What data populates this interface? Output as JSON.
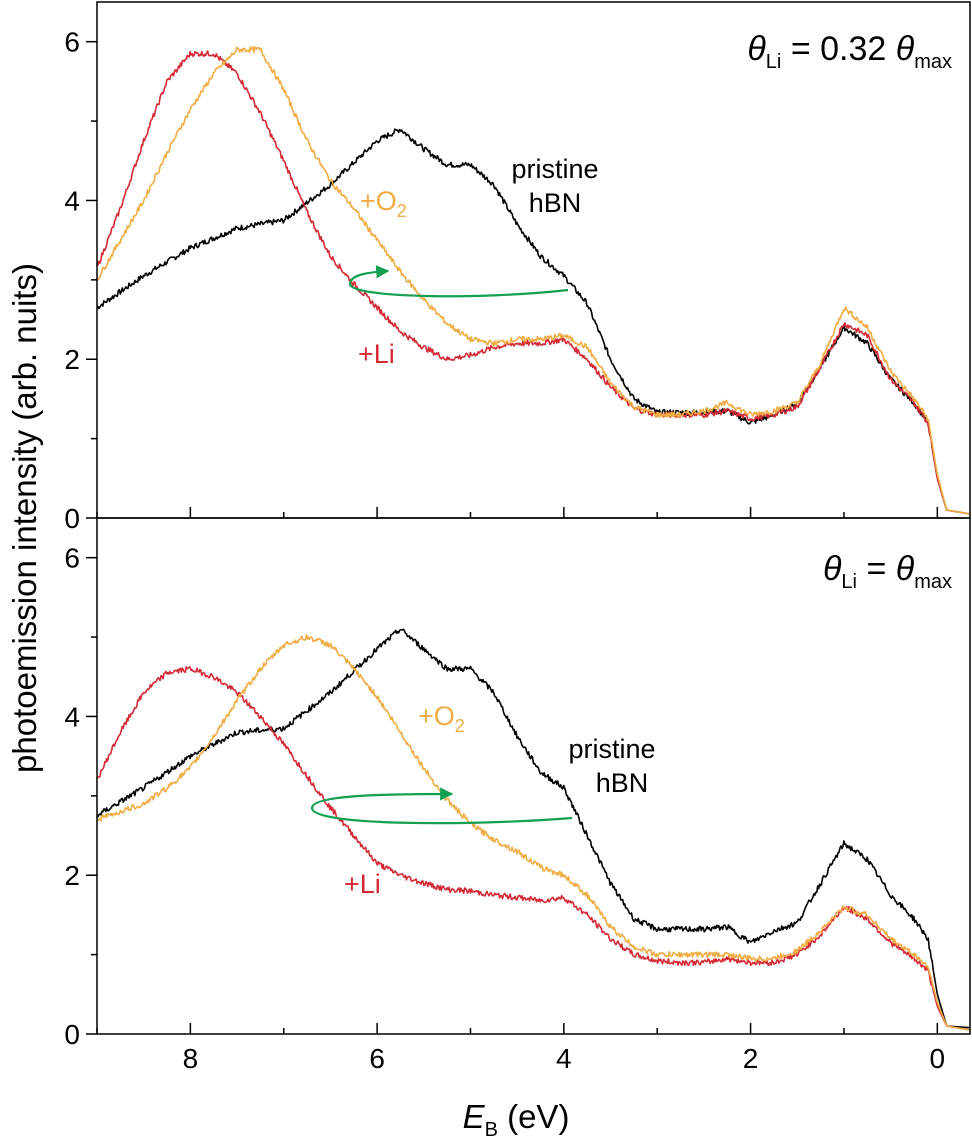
{
  "figure": {
    "ylabel": "photoemission intensity (arb. nuits)",
    "xlabel_main": "E",
    "xlabel_sub": "B",
    "xlabel_unit": " (eV)"
  },
  "colors": {
    "pristine": "#000000",
    "li": "#d42a35",
    "o2": "#f0ad45",
    "arrow": "#14a050"
  },
  "chart_data": [
    {
      "type": "line",
      "panel": "top",
      "title_theta": "θ",
      "title_sub": "Li",
      "title_rest": " = 0.32 ",
      "title_theta2": "θ",
      "title_sub2": "max",
      "xlabel": "E_B (eV)",
      "ylabel": "photoemission intensity (arb. nuits)",
      "xlim": [
        9.0,
        -0.35
      ],
      "ylim": [
        0,
        6.5
      ],
      "xticks": [
        8,
        6,
        4,
        2,
        0
      ],
      "xtick_labels": [
        "8",
        "6",
        "4",
        "2",
        "0"
      ],
      "yticks": [
        0,
        2,
        4,
        6
      ],
      "ytick_labels": [
        "0",
        "2",
        "4",
        "6"
      ],
      "annotations": {
        "pristine_line1": "pristine",
        "pristine_line2": "hBN",
        "o2_main": "+O",
        "o2_sub": "2",
        "li": "+Li"
      },
      "series": [
        {
          "name": "pristine hBN",
          "color": "#000000",
          "x": [
            9.0,
            8.5,
            8.0,
            7.5,
            7.0,
            6.5,
            6.0,
            5.75,
            5.5,
            5.25,
            5.0,
            4.75,
            4.5,
            4.25,
            4.0,
            3.75,
            3.5,
            3.25,
            3.0,
            2.75,
            2.5,
            2.25,
            2.0,
            1.75,
            1.5,
            1.25,
            1.0,
            0.75,
            0.5,
            0.25,
            0.1,
            0.0,
            -0.1,
            -0.35
          ],
          "y": [
            2.65,
            3.05,
            3.4,
            3.65,
            3.75,
            4.2,
            4.75,
            4.9,
            4.65,
            4.45,
            4.45,
            4.2,
            3.7,
            3.3,
            3.05,
            2.7,
            2.0,
            1.5,
            1.33,
            1.33,
            1.33,
            1.35,
            1.2,
            1.3,
            1.45,
            1.9,
            2.4,
            2.2,
            1.75,
            1.45,
            1.2,
            0.5,
            0.1,
            0.05
          ]
        },
        {
          "name": "+Li",
          "color": "#d42a35",
          "x": [
            9.0,
            8.75,
            8.5,
            8.25,
            8.0,
            7.75,
            7.5,
            7.25,
            7.0,
            6.75,
            6.5,
            6.25,
            6.0,
            5.75,
            5.5,
            5.25,
            5.0,
            4.75,
            4.5,
            4.25,
            4.0,
            3.75,
            3.5,
            3.25,
            3.0,
            2.75,
            2.5,
            2.25,
            2.0,
            1.75,
            1.5,
            1.25,
            1.0,
            0.75,
            0.5,
            0.25,
            0.1,
            0.0,
            -0.1,
            -0.35
          ],
          "y": [
            3.15,
            3.9,
            4.75,
            5.5,
            5.85,
            5.85,
            5.6,
            5.1,
            4.5,
            3.85,
            3.3,
            2.95,
            2.65,
            2.35,
            2.15,
            2.0,
            2.05,
            2.15,
            2.2,
            2.2,
            2.25,
            2.0,
            1.65,
            1.38,
            1.3,
            1.3,
            1.3,
            1.35,
            1.25,
            1.3,
            1.4,
            1.9,
            2.45,
            2.3,
            1.75,
            1.45,
            1.2,
            0.5,
            0.1,
            0.05
          ]
        },
        {
          "name": "+O2",
          "color": "#f0ad45",
          "x": [
            9.0,
            8.75,
            8.5,
            8.25,
            8.0,
            7.75,
            7.5,
            7.25,
            7.0,
            6.75,
            6.5,
            6.25,
            6.0,
            5.75,
            5.5,
            5.25,
            5.0,
            4.75,
            4.5,
            4.25,
            4.0,
            3.75,
            3.5,
            3.25,
            3.0,
            2.75,
            2.5,
            2.25,
            2.0,
            1.75,
            1.5,
            1.25,
            1.0,
            0.75,
            0.5,
            0.25,
            0.1,
            0.0,
            -0.1,
            -0.35
          ],
          "y": [
            3.0,
            3.5,
            4.0,
            4.6,
            5.15,
            5.6,
            5.9,
            5.9,
            5.4,
            4.75,
            4.25,
            3.9,
            3.5,
            3.1,
            2.75,
            2.45,
            2.25,
            2.2,
            2.25,
            2.25,
            2.3,
            2.15,
            1.7,
            1.4,
            1.3,
            1.3,
            1.35,
            1.45,
            1.3,
            1.35,
            1.45,
            1.95,
            2.65,
            2.4,
            1.85,
            1.5,
            1.25,
            0.55,
            0.1,
            0.05
          ]
        }
      ]
    },
    {
      "type": "line",
      "panel": "bottom",
      "title_theta": "θ",
      "title_sub": "Li",
      "title_rest": " = ",
      "title_theta2": "θ",
      "title_sub2": "max",
      "xlabel": "E_B (eV)",
      "ylabel": "photoemission intensity (arb. nuits)",
      "xlim": [
        9.0,
        -0.35
      ],
      "ylim": [
        0,
        6.5
      ],
      "xticks": [
        8,
        6,
        4,
        2,
        0
      ],
      "xtick_labels": [
        "8",
        "6",
        "4",
        "2",
        "0"
      ],
      "yticks": [
        0,
        2,
        4,
        6
      ],
      "ytick_labels": [
        "0",
        "2",
        "4",
        "6"
      ],
      "annotations": {
        "pristine_line1": "pristine",
        "pristine_line2": "hBN",
        "o2_main": "+O",
        "o2_sub": "2",
        "li": "+Li"
      },
      "series": [
        {
          "name": "pristine hBN",
          "color": "#000000",
          "x": [
            9.0,
            8.5,
            8.0,
            7.5,
            7.0,
            6.5,
            6.0,
            5.75,
            5.5,
            5.25,
            5.0,
            4.75,
            4.5,
            4.25,
            4.0,
            3.75,
            3.5,
            3.25,
            3.0,
            2.75,
            2.5,
            2.25,
            2.0,
            1.75,
            1.5,
            1.25,
            1.0,
            0.75,
            0.5,
            0.25,
            0.1,
            0.0,
            -0.1,
            -0.35
          ],
          "y": [
            2.75,
            3.1,
            3.5,
            3.8,
            3.85,
            4.3,
            4.85,
            5.1,
            4.85,
            4.6,
            4.6,
            4.3,
            3.75,
            3.3,
            3.1,
            2.5,
            1.9,
            1.45,
            1.32,
            1.32,
            1.32,
            1.35,
            1.15,
            1.3,
            1.4,
            1.9,
            2.4,
            2.2,
            1.75,
            1.45,
            1.2,
            0.5,
            0.1,
            0.08
          ]
        },
        {
          "name": "+Li",
          "color": "#d42a35",
          "x": [
            9.0,
            8.75,
            8.5,
            8.25,
            8.0,
            7.75,
            7.5,
            7.25,
            7.0,
            6.75,
            6.5,
            6.25,
            6.0,
            5.75,
            5.5,
            5.25,
            5.0,
            4.75,
            4.5,
            4.25,
            4.0,
            3.75,
            3.5,
            3.25,
            3.0,
            2.75,
            2.5,
            2.25,
            2.0,
            1.75,
            1.5,
            1.25,
            1.0,
            0.75,
            0.5,
            0.25,
            0.1,
            0.0,
            -0.1,
            -0.35
          ],
          "y": [
            3.2,
            3.8,
            4.3,
            4.55,
            4.6,
            4.5,
            4.3,
            4.0,
            3.65,
            3.25,
            2.85,
            2.5,
            2.15,
            2.0,
            1.9,
            1.82,
            1.8,
            1.75,
            1.72,
            1.68,
            1.72,
            1.5,
            1.2,
            1.0,
            0.92,
            0.9,
            0.9,
            0.95,
            0.9,
            0.9,
            1.0,
            1.25,
            1.6,
            1.45,
            1.15,
            0.95,
            0.8,
            0.35,
            0.1,
            0.05
          ]
        },
        {
          "name": "+O2",
          "color": "#f0ad45",
          "x": [
            9.0,
            8.75,
            8.5,
            8.25,
            8.0,
            7.75,
            7.5,
            7.25,
            7.0,
            6.75,
            6.5,
            6.25,
            6.0,
            5.75,
            5.5,
            5.25,
            5.0,
            4.75,
            4.5,
            4.25,
            4.0,
            3.75,
            3.5,
            3.25,
            3.0,
            2.75,
            2.5,
            2.25,
            2.0,
            1.75,
            1.5,
            1.25,
            1.0,
            0.75,
            0.5,
            0.25,
            0.1,
            0.0,
            -0.1,
            -0.35
          ],
          "y": [
            2.7,
            2.8,
            2.9,
            3.1,
            3.35,
            3.75,
            4.2,
            4.6,
            4.9,
            5.0,
            4.9,
            4.6,
            4.25,
            3.8,
            3.35,
            2.95,
            2.65,
            2.45,
            2.3,
            2.1,
            2.0,
            1.75,
            1.35,
            1.1,
            1.0,
            1.0,
            1.0,
            1.0,
            0.95,
            0.95,
            1.05,
            1.3,
            1.6,
            1.5,
            1.2,
            1.0,
            0.85,
            0.4,
            0.1,
            0.05
          ]
        }
      ]
    }
  ]
}
